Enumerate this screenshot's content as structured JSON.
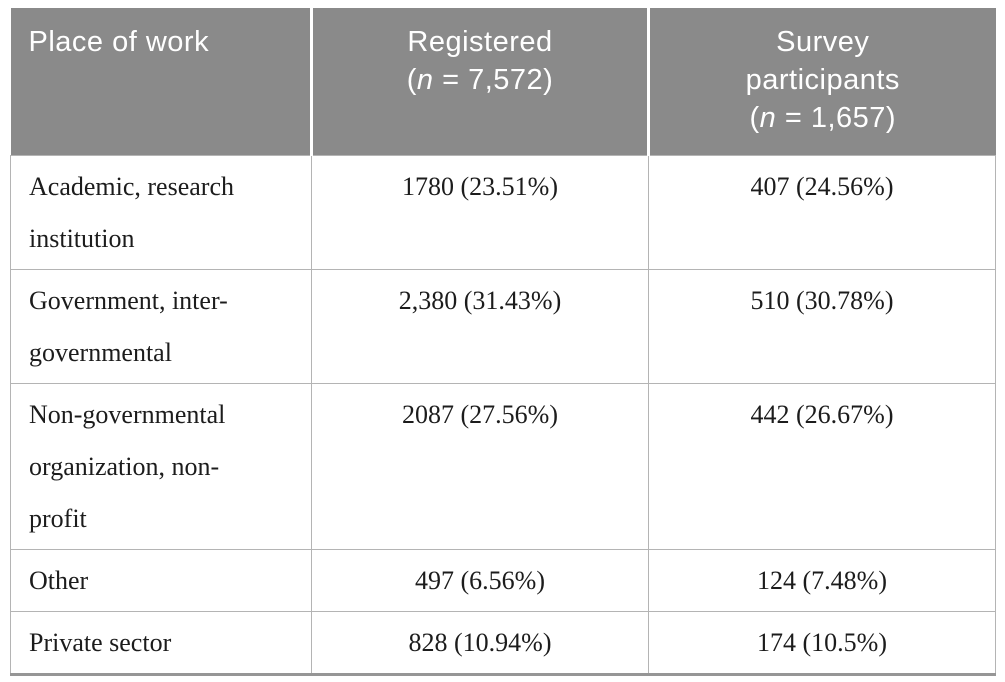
{
  "table": {
    "header": {
      "col1": "Place of work",
      "col2": {
        "title": "Registered",
        "n_open": "(",
        "n_italic": "n",
        "n_rest": " = 7,572)"
      },
      "col3": {
        "title": "Survey participants",
        "n_open": "(",
        "n_italic": "n",
        "n_rest": " = 1,657)"
      }
    },
    "rows": [
      {
        "place": "Academic, research institution",
        "registered": "1780 (23.51%)",
        "survey": "407 (24.56%)"
      },
      {
        "place": "Government, inter-governmental",
        "registered": "2,380 (31.43%)",
        "survey": "510 (30.78%)"
      },
      {
        "place": "Non-governmental organization, non-profit",
        "registered": "2087 (27.56%)",
        "survey": "442 (26.67%)"
      },
      {
        "place": "Other",
        "registered": "497 (6.56%)",
        "survey": "124 (7.48%)"
      },
      {
        "place": "Private sector",
        "registered": "828 (10.94%)",
        "survey": "174 (10.5%)"
      }
    ],
    "colors": {
      "header_bg": "#8a8a8a",
      "header_text": "#ffffff",
      "body_text": "#1c1c1c",
      "cell_border": "#b4b4b4",
      "bottom_rule": "#969696"
    }
  }
}
